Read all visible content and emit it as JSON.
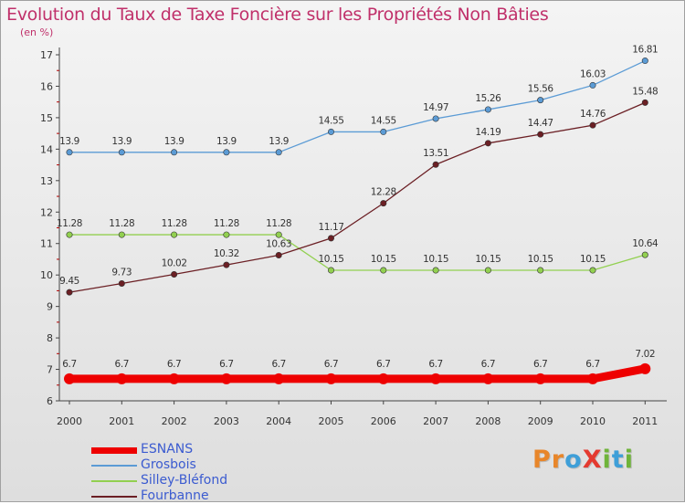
{
  "title": "Evolution du Taux de Taxe Foncière sur les Propriétés Non Bâties",
  "unit_label": "(en %)",
  "logo": {
    "text": "ProXiti",
    "letters": [
      {
        "ch": "P",
        "color": "#e8862a"
      },
      {
        "ch": "r",
        "color": "#e8862a"
      },
      {
        "ch": "o",
        "color": "#3f9fd8"
      },
      {
        "ch": "X",
        "color": "#e43a30"
      },
      {
        "ch": "i",
        "color": "#6fb43a"
      },
      {
        "ch": "t",
        "color": "#3f9fd8"
      },
      {
        "ch": "i",
        "color": "#6fb43a"
      }
    ]
  },
  "chart_data": {
    "type": "line",
    "title": "Evolution du Taux de Taxe Foncière sur les Propriétés Non Bâties",
    "ylabel": "(en %)",
    "xlabel": "",
    "ylim": [
      6,
      17
    ],
    "yticks": [
      6,
      7,
      8,
      9,
      10,
      11,
      12,
      13,
      14,
      15,
      16,
      17
    ],
    "x": [
      "2000",
      "2001",
      "2002",
      "2003",
      "2004",
      "2005",
      "2006",
      "2007",
      "2008",
      "2009",
      "2010",
      "2011"
    ],
    "grid": false,
    "legend_position": "bottom-left",
    "series": [
      {
        "name": "ESNANS",
        "color": "#ee0000",
        "values": [
          6.7,
          6.7,
          6.7,
          6.7,
          6.7,
          6.7,
          6.7,
          6.7,
          6.7,
          6.7,
          6.7,
          7.02
        ],
        "labels": [
          "6.7",
          "6.7",
          "6.7",
          "6.7",
          "6.7",
          "6.7",
          "6.7",
          "6.7",
          "6.7",
          "6.7",
          "6.7",
          "7.02"
        ]
      },
      {
        "name": "Grosbois",
        "color": "#5b9bd5",
        "values": [
          13.9,
          13.9,
          13.9,
          13.9,
          13.9,
          14.55,
          14.55,
          14.97,
          15.26,
          15.56,
          16.03,
          16.81
        ],
        "labels": [
          "13.9",
          "13.9",
          "13.9",
          "13.9",
          "13.9",
          "14.55",
          "14.55",
          "14.97",
          "15.26",
          "15.56",
          "16.03",
          "16.81"
        ]
      },
      {
        "name": "Silley-Bléfond",
        "color": "#92d050",
        "values": [
          11.28,
          11.28,
          11.28,
          11.28,
          11.28,
          10.15,
          10.15,
          10.15,
          10.15,
          10.15,
          10.15,
          10.64
        ],
        "labels": [
          "11.28",
          "11.28",
          "11.28",
          "11.28",
          "11.28",
          "10.15",
          "10.15",
          "10.15",
          "10.15",
          "10.15",
          "10.15",
          "10.64"
        ]
      },
      {
        "name": "Fourbanne",
        "color": "#6b1f24",
        "values": [
          9.45,
          9.73,
          10.02,
          10.32,
          10.63,
          11.17,
          12.28,
          13.51,
          14.19,
          14.47,
          14.76,
          15.48
        ],
        "labels": [
          "9.45",
          "9.73",
          "10.02",
          "10.32",
          "10.63",
          "11.17",
          "12.28",
          "13.51",
          "14.19",
          "14.47",
          "14.76",
          "15.48"
        ]
      }
    ]
  }
}
